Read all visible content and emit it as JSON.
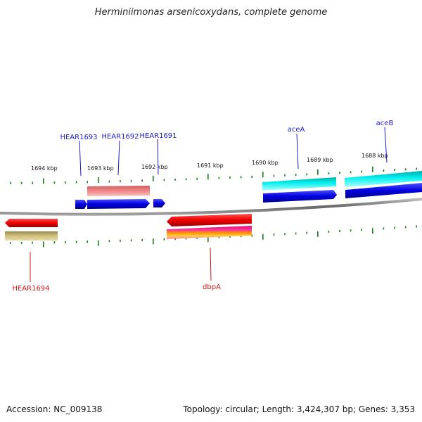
{
  "title": "Herminiimonas arsenicoxydans, complete genome",
  "footer": {
    "accession": "Accession: NC_009138",
    "summary": "Topology: circular; Length: 3,424,307 bp; Genes: 3,353"
  },
  "colors": {
    "tick": "#1a7a1a",
    "backbone": "#888888",
    "forward_label": "#1a1acc",
    "reverse_label": "#cc1a1a",
    "blue_gene": "#0a0ae0",
    "red_gene": "#e60000",
    "cyan_gene": "#00cccc",
    "pink_gene": "#e87070",
    "khaki_gene": "#c8b878",
    "magenta_gene": "#e0208a"
  },
  "kbp_labels": [
    "1694 kbp",
    "1693 kbp",
    "1692 kbp",
    "1691 kbp",
    "1690 kbp",
    "1689 kbp",
    "1688 kbp"
  ],
  "gene_labels": {
    "forward": [
      "HEAR1693",
      "HEAR1692",
      "HEAR1691",
      "aceA",
      "aceB"
    ],
    "reverse": [
      "HEAR1694",
      "dbpA"
    ]
  }
}
